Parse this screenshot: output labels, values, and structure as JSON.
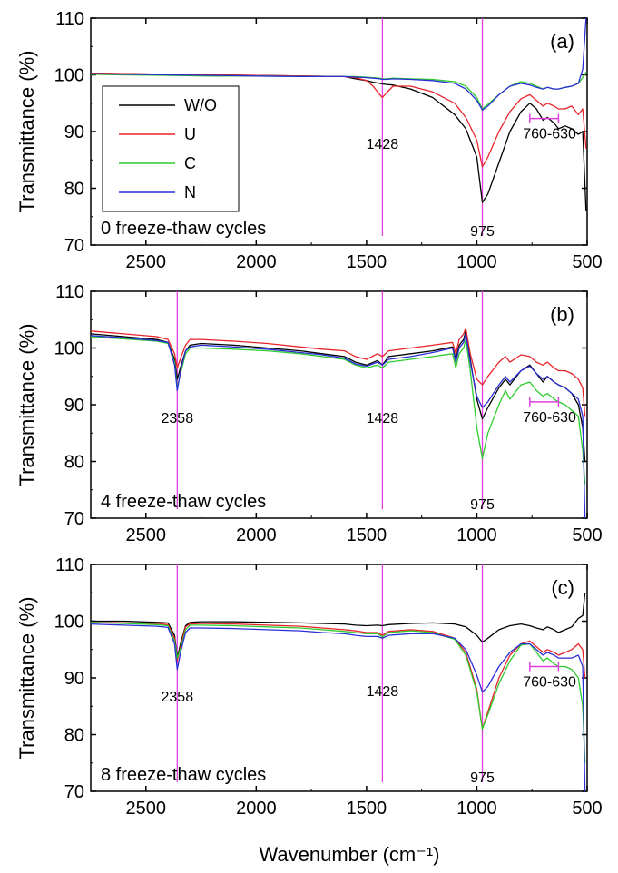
{
  "chart_data": [
    {
      "type": "line",
      "panel_label": "(a)",
      "condition_label": "0 freeze-thaw cycles",
      "ylabel": "Transmittance (%)",
      "xlabel": "",
      "xlim": [
        2750,
        500
      ],
      "ylim": [
        70,
        110
      ],
      "x_ticks": [
        2500,
        2000,
        1500,
        1000,
        500
      ],
      "y_ticks": [
        70,
        80,
        90,
        100,
        110
      ],
      "legend": {
        "position": "left",
        "entries": [
          "W/O",
          "U",
          "C",
          "N"
        ]
      },
      "peak_markers": [
        {
          "x": 1428,
          "label": "1428"
        },
        {
          "x": 975,
          "label": "975"
        }
      ],
      "range_marker": {
        "x_from": 760,
        "x_to": 630,
        "label": "760-630"
      },
      "x": [
        2750,
        2600,
        2400,
        2200,
        2000,
        1800,
        1600,
        1550,
        1500,
        1470,
        1440,
        1428,
        1410,
        1380,
        1300,
        1200,
        1100,
        1050,
        1000,
        975,
        950,
        900,
        850,
        800,
        760,
        730,
        700,
        680,
        650,
        630,
        600,
        570,
        540,
        520,
        505
      ],
      "series": [
        {
          "name": "W/O",
          "color": "#000000",
          "values": [
            100.3,
            100.2,
            100.1,
            100.0,
            99.9,
            99.8,
            99.7,
            99.3,
            99.0,
            98.7,
            98.5,
            98.4,
            98.3,
            98.2,
            97.5,
            96.0,
            93.0,
            90.5,
            85.5,
            77.5,
            79.0,
            84.5,
            90.0,
            93.5,
            95.0,
            94.0,
            92.0,
            92.5,
            91.5,
            90.5,
            91.0,
            90.5,
            89.5,
            90.0,
            76.0
          ]
        },
        {
          "name": "U",
          "color": "#e8242b",
          "values": [
            100.3,
            100.2,
            100.1,
            100.0,
            99.9,
            99.8,
            99.7,
            99.5,
            99.0,
            98.0,
            96.5,
            96.0,
            96.8,
            98.0,
            98.0,
            97.0,
            95.0,
            92.5,
            88.5,
            83.8,
            85.5,
            90.0,
            93.5,
            95.8,
            96.5,
            95.5,
            94.5,
            95.0,
            94.5,
            94.0,
            94.0,
            94.5,
            93.0,
            94.0,
            87.0
          ]
        },
        {
          "name": "C",
          "color": "#2ecc2e",
          "values": [
            100.1,
            100.0,
            99.9,
            99.8,
            99.8,
            99.7,
            99.7,
            99.7,
            99.6,
            99.5,
            99.4,
            99.3,
            99.3,
            99.4,
            99.3,
            99.2,
            98.8,
            98.0,
            96.0,
            94.0,
            94.8,
            96.5,
            98.0,
            98.8,
            98.5,
            98.0,
            97.5,
            97.8,
            97.5,
            97.5,
            97.8,
            98.0,
            98.5,
            99.5,
            100.5
          ]
        },
        {
          "name": "N",
          "color": "#2a2ed6",
          "values": [
            100.2,
            100.1,
            100.0,
            99.9,
            99.8,
            99.7,
            99.7,
            99.6,
            99.5,
            99.4,
            99.3,
            99.2,
            99.2,
            99.3,
            99.2,
            99.0,
            98.5,
            97.5,
            95.5,
            93.8,
            94.5,
            96.5,
            98.0,
            98.5,
            98.2,
            97.8,
            97.5,
            97.8,
            97.5,
            97.5,
            97.8,
            98.0,
            98.5,
            101.0,
            110.0
          ]
        }
      ]
    },
    {
      "type": "line",
      "panel_label": "(b)",
      "condition_label": "4 freeze-thaw cycles",
      "ylabel": "Transmittance (%)",
      "xlabel": "",
      "xlim": [
        2750,
        500
      ],
      "ylim": [
        70,
        110
      ],
      "x_ticks": [
        2500,
        2000,
        1500,
        1000,
        500
      ],
      "y_ticks": [
        70,
        80,
        90,
        100,
        110
      ],
      "peak_markers": [
        {
          "x": 2358,
          "label": "2358"
        },
        {
          "x": 1428,
          "label": "1428"
        },
        {
          "x": 975,
          "label": "975"
        }
      ],
      "range_marker": {
        "x_from": 760,
        "x_to": 630,
        "label": "760-630"
      },
      "x": [
        2750,
        2600,
        2450,
        2400,
        2370,
        2358,
        2340,
        2320,
        2300,
        2250,
        2100,
        1950,
        1800,
        1700,
        1600,
        1550,
        1500,
        1450,
        1428,
        1400,
        1300,
        1200,
        1110,
        1095,
        1080,
        1060,
        1050,
        1030,
        1000,
        975,
        950,
        900,
        870,
        850,
        800,
        760,
        730,
        700,
        680,
        650,
        630,
        600,
        570,
        540,
        520,
        510
      ],
      "series": [
        {
          "name": "W/O",
          "color": "#000000",
          "values": [
            102.5,
            102.0,
            101.5,
            101.0,
            98.0,
            94.5,
            97.0,
            99.5,
            100.5,
            100.8,
            100.5,
            100.0,
            99.5,
            99.0,
            98.5,
            97.5,
            97.0,
            97.8,
            97.0,
            98.5,
            99.0,
            99.5,
            100.2,
            98.0,
            100.5,
            101.5,
            103.0,
            98.0,
            91.0,
            87.5,
            89.5,
            93.0,
            94.5,
            93.5,
            96.0,
            97.0,
            95.5,
            94.0,
            95.0,
            94.0,
            93.5,
            93.0,
            92.0,
            90.0,
            86.0,
            80.0
          ]
        },
        {
          "name": "U",
          "color": "#e8242b",
          "values": [
            103.0,
            102.5,
            102.0,
            101.5,
            99.0,
            96.5,
            98.5,
            100.5,
            101.5,
            101.5,
            101.2,
            100.8,
            100.2,
            99.8,
            99.5,
            98.5,
            98.0,
            99.0,
            98.5,
            99.5,
            100.0,
            100.5,
            101.0,
            99.0,
            101.5,
            102.5,
            103.5,
            99.0,
            94.5,
            93.5,
            95.0,
            97.5,
            98.5,
            97.5,
            98.8,
            98.5,
            97.5,
            97.0,
            97.5,
            96.5,
            96.0,
            96.0,
            95.5,
            94.5,
            93.0,
            88.0
          ]
        },
        {
          "name": "C",
          "color": "#2ecc2e",
          "values": [
            102.0,
            101.6,
            101.2,
            100.8,
            97.5,
            93.0,
            96.0,
            99.0,
            100.0,
            100.0,
            99.8,
            99.5,
            99.0,
            98.5,
            98.0,
            97.0,
            96.5,
            97.0,
            96.5,
            97.5,
            98.0,
            98.5,
            99.0,
            96.5,
            99.0,
            100.0,
            101.5,
            96.0,
            86.0,
            80.5,
            85.0,
            90.0,
            92.5,
            91.0,
            93.5,
            94.0,
            92.5,
            91.5,
            92.0,
            91.0,
            90.5,
            90.0,
            89.0,
            88.0,
            82.0,
            76.0
          ]
        },
        {
          "name": "N",
          "color": "#2a2ed6",
          "values": [
            102.2,
            101.8,
            101.3,
            101.0,
            97.0,
            92.5,
            96.5,
            99.5,
            100.2,
            100.5,
            100.2,
            99.8,
            99.2,
            98.8,
            98.2,
            97.2,
            96.8,
            97.5,
            97.0,
            98.0,
            98.5,
            99.2,
            100.0,
            97.5,
            100.0,
            101.0,
            102.5,
            97.5,
            91.5,
            89.5,
            90.5,
            93.5,
            95.0,
            94.0,
            96.0,
            96.8,
            95.5,
            94.5,
            95.0,
            94.0,
            93.5,
            93.0,
            92.0,
            91.0,
            88.0,
            70.0
          ]
        }
      ]
    },
    {
      "type": "line",
      "panel_label": "(c)",
      "condition_label": "8 freeze-thaw cycles",
      "ylabel": "Transmittance (%)",
      "xlabel": "Wavenumber (cm⁻¹)",
      "xlim": [
        2750,
        500
      ],
      "ylim": [
        70,
        110
      ],
      "x_ticks": [
        2500,
        2000,
        1500,
        1000,
        500
      ],
      "y_ticks": [
        70,
        80,
        90,
        100,
        110
      ],
      "peak_markers": [
        {
          "x": 2358,
          "label": "2358"
        },
        {
          "x": 1428,
          "label": "1428"
        },
        {
          "x": 975,
          "label": "975"
        }
      ],
      "range_marker": {
        "x_from": 760,
        "x_to": 630,
        "label": "760-630"
      },
      "x": [
        2750,
        2600,
        2450,
        2400,
        2370,
        2358,
        2340,
        2320,
        2300,
        2250,
        2100,
        1950,
        1800,
        1700,
        1600,
        1550,
        1500,
        1450,
        1428,
        1400,
        1300,
        1200,
        1100,
        1050,
        1000,
        975,
        950,
        900,
        850,
        800,
        760,
        730,
        700,
        680,
        650,
        630,
        600,
        570,
        540,
        520,
        510
      ],
      "series": [
        {
          "name": "W/O",
          "color": "#000000",
          "values": [
            100.0,
            100.0,
            99.8,
            99.7,
            97.5,
            93.5,
            96.5,
            99.2,
            99.8,
            99.9,
            99.9,
            99.8,
            99.7,
            99.6,
            99.5,
            99.3,
            99.2,
            99.3,
            99.2,
            99.4,
            99.6,
            99.7,
            99.5,
            99.0,
            97.5,
            96.3,
            97.0,
            98.5,
            99.2,
            99.5,
            99.2,
            98.8,
            98.5,
            99.0,
            98.5,
            98.0,
            98.5,
            99.0,
            100.5,
            101.0,
            105.0
          ]
        },
        {
          "name": "U",
          "color": "#e8242b",
          "values": [
            99.8,
            99.7,
            99.6,
            99.4,
            97.0,
            93.0,
            96.0,
            99.0,
            99.5,
            99.6,
            99.5,
            99.3,
            99.1,
            98.8,
            98.5,
            98.3,
            98.0,
            98.0,
            97.5,
            98.2,
            98.5,
            98.2,
            97.0,
            94.5,
            88.0,
            81.0,
            84.0,
            90.0,
            94.0,
            96.0,
            96.5,
            95.5,
            94.5,
            95.0,
            94.5,
            94.0,
            94.5,
            95.0,
            96.0,
            95.0,
            90.0
          ]
        },
        {
          "name": "C",
          "color": "#2ecc2e",
          "values": [
            99.8,
            99.6,
            99.4,
            99.2,
            96.5,
            93.5,
            95.5,
            98.5,
            99.3,
            99.3,
            99.2,
            99.0,
            98.8,
            98.5,
            98.2,
            98.0,
            97.8,
            97.8,
            97.2,
            98.0,
            98.3,
            98.0,
            96.8,
            94.0,
            87.5,
            81.0,
            83.5,
            89.0,
            93.0,
            95.8,
            96.0,
            94.5,
            93.0,
            93.5,
            92.5,
            92.0,
            92.0,
            91.5,
            90.0,
            85.0,
            75.0
          ]
        },
        {
          "name": "N",
          "color": "#2a2ed6",
          "values": [
            99.5,
            99.3,
            99.1,
            98.9,
            96.0,
            91.5,
            95.0,
            98.0,
            98.8,
            98.8,
            98.7,
            98.5,
            98.3,
            98.0,
            97.8,
            97.5,
            97.3,
            97.3,
            97.0,
            97.5,
            97.8,
            97.8,
            97.0,
            95.0,
            90.5,
            87.5,
            88.5,
            92.0,
            94.5,
            96.0,
            96.0,
            95.0,
            94.0,
            94.5,
            94.0,
            93.5,
            93.5,
            93.5,
            94.0,
            92.0,
            70.0
          ]
        }
      ]
    }
  ]
}
